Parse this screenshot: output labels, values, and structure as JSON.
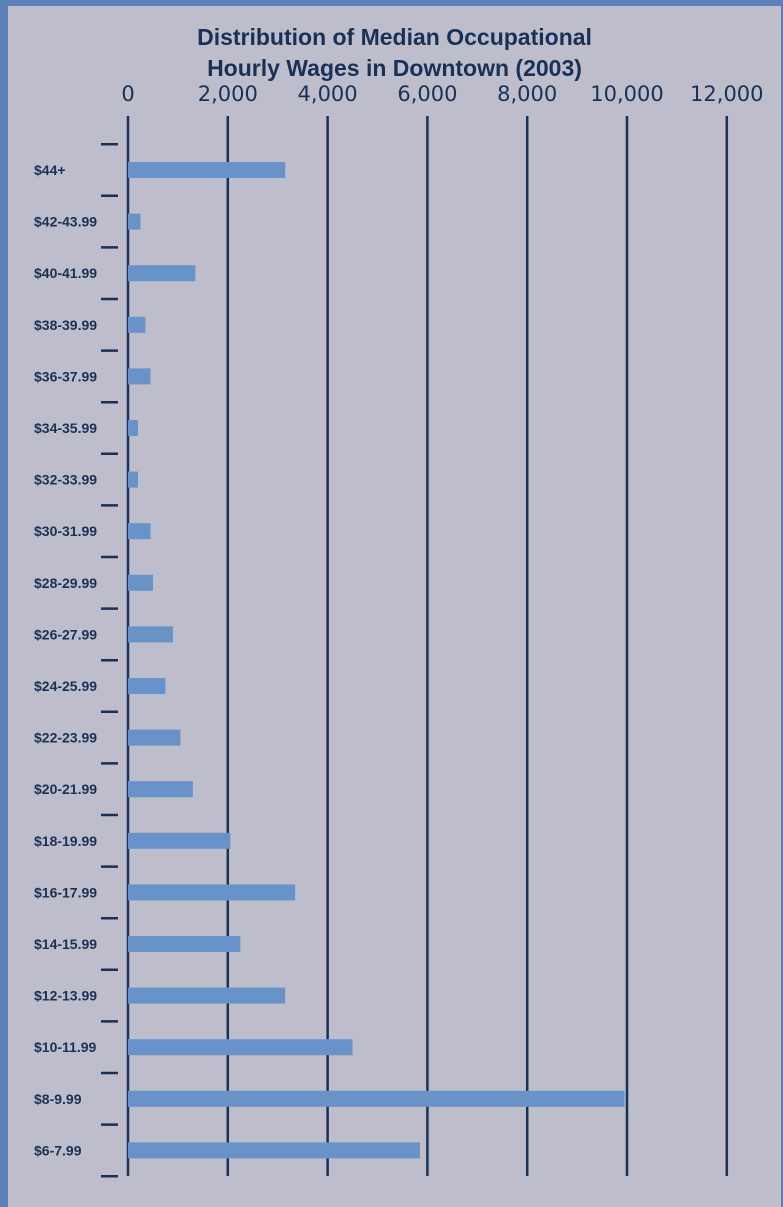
{
  "colors": {
    "page_background": "#bdbdcb",
    "border": "#5b7fb6",
    "bar": "#6793c9",
    "text": "#1a3157",
    "gridline": "#1a3157"
  },
  "chart_data": {
    "type": "bar",
    "orientation": "horizontal",
    "title_lines": [
      "Distribution of Median Occupational",
      "Hourly Wages in Downtown (2003)"
    ],
    "xlabel": "",
    "ylabel": "",
    "xlim": [
      0,
      12000
    ],
    "x_ticks": [
      0,
      2000,
      4000,
      6000,
      8000,
      10000,
      12000
    ],
    "x_tick_labels": [
      "0",
      "2,000",
      "4,000",
      "6,000",
      "8,000",
      "10,000",
      "12,000"
    ],
    "grid": true,
    "legend": "none",
    "categories": [
      "$44+",
      "$42-43.99",
      "$40-41.99",
      "$38-39.99",
      "$36-37.99",
      "$34-35.99",
      "$32-33.99",
      "$30-31.99",
      "$28-29.99",
      "$26-27.99",
      "$24-25.99",
      "$22-23.99",
      "$20-21.99",
      "$18-19.99",
      "$16-17.99",
      "$14-15.99",
      "$12-13.99",
      "$10-11.99",
      "$8-9.99",
      "$6-7.99"
    ],
    "values": [
      3150,
      250,
      1350,
      350,
      450,
      200,
      200,
      450,
      500,
      900,
      750,
      1050,
      1300,
      2050,
      3350,
      2250,
      3150,
      4500,
      9950,
      5850
    ]
  }
}
